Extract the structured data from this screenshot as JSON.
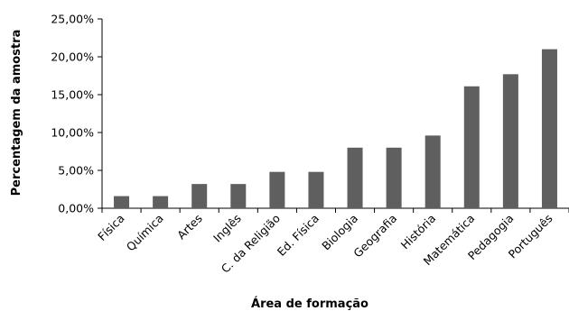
{
  "chart_data": {
    "type": "bar",
    "title": "",
    "xlabel": "Área de formação",
    "ylabel": "Percentagem da amostra",
    "categories": [
      "Física",
      "Química",
      "Artes",
      "Inglês",
      "C. da Religião",
      "Ed. Física",
      "Biologia",
      "Geografia",
      "História",
      "Matemática",
      "Pedagogia",
      "Português"
    ],
    "values": [
      1.6,
      1.6,
      3.2,
      3.2,
      4.8,
      4.8,
      8.0,
      8.0,
      9.6,
      16.1,
      17.7,
      21.0
    ],
    "ylim": [
      0,
      25
    ],
    "yticks": [
      0,
      5,
      10,
      15,
      20,
      25
    ],
    "ytick_labels": [
      "0,00%",
      "5,00%",
      "10,00%",
      "15,00%",
      "20,00%",
      "25,00%"
    ],
    "grid": false,
    "legend": "none",
    "bar_color": "#5f5f5f"
  }
}
